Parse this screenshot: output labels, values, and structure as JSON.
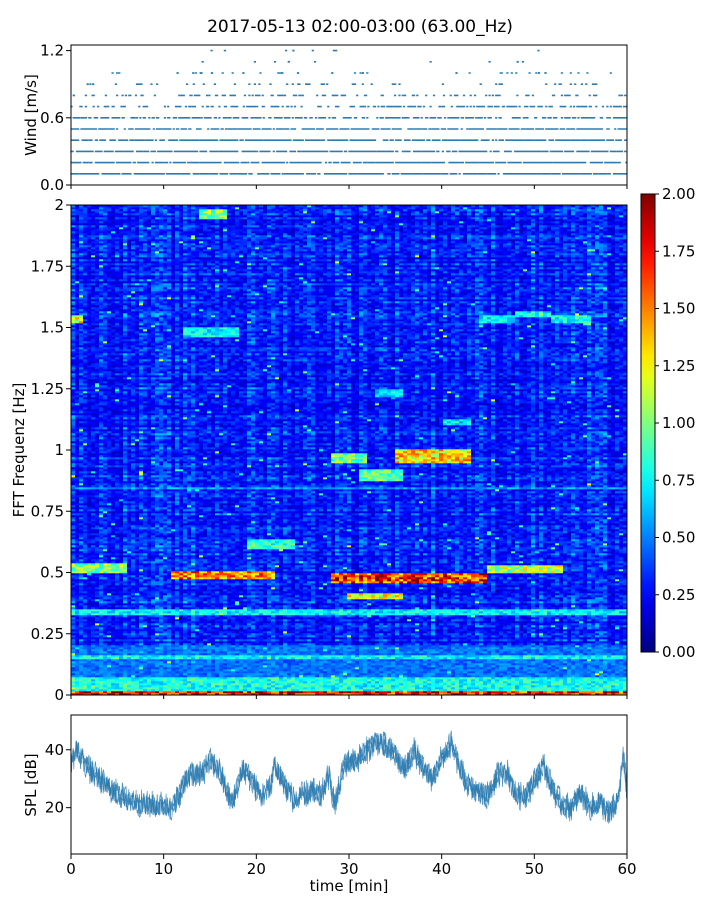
{
  "title": "2017-05-13 02:00-03:00 (63.00_Hz)",
  "colors": {
    "series": "#2b7bb0",
    "axis": "#000000"
  },
  "chart_data": [
    {
      "type": "scatter",
      "name": "wind",
      "ylabel": "Wind [m/s]",
      "xlim": [
        0,
        60
      ],
      "ylim": [
        0,
        1.25
      ],
      "yticks": [
        {
          "v": 0,
          "label": "0.0"
        },
        {
          "v": 0.6,
          "label": "0.6"
        },
        {
          "v": 1.2,
          "label": "1.2"
        }
      ],
      "levels": [
        0.1,
        0.2,
        0.3,
        0.4,
        0.5,
        0.6,
        0.7,
        0.8,
        0.9,
        1.0,
        1.1,
        1.2
      ],
      "level_profile": [
        {
          "t": 0,
          "p": [
            0.9,
            0.8,
            0.75,
            0.7,
            0.6,
            0.5,
            0.3,
            0.15,
            0.05,
            0.02,
            0,
            0
          ]
        },
        {
          "t": 10,
          "p": [
            0.8,
            0.8,
            0.75,
            0.7,
            0.6,
            0.5,
            0.35,
            0.2,
            0.08,
            0.05,
            0,
            0
          ]
        },
        {
          "t": 17,
          "p": [
            0.8,
            0.8,
            0.8,
            0.75,
            0.7,
            0.6,
            0.45,
            0.3,
            0.15,
            0.1,
            0.04,
            0.02
          ]
        },
        {
          "t": 24,
          "p": [
            0.8,
            0.8,
            0.8,
            0.8,
            0.7,
            0.6,
            0.5,
            0.3,
            0.15,
            0.1,
            0.05,
            0.03
          ]
        },
        {
          "t": 30,
          "p": [
            0.8,
            0.8,
            0.8,
            0.75,
            0.7,
            0.5,
            0.35,
            0.2,
            0.08,
            0.04,
            0,
            0
          ]
        },
        {
          "t": 40,
          "p": [
            0.8,
            0.8,
            0.8,
            0.75,
            0.7,
            0.55,
            0.4,
            0.25,
            0.1,
            0.05,
            0.02,
            0
          ]
        },
        {
          "t": 50,
          "p": [
            0.8,
            0.8,
            0.8,
            0.8,
            0.7,
            0.6,
            0.45,
            0.25,
            0.12,
            0.06,
            0.02,
            0.01
          ]
        },
        {
          "t": 60,
          "p": [
            0.8,
            0.8,
            0.8,
            0.75,
            0.7,
            0.6,
            0.4,
            0.2,
            0.08,
            0.04,
            0,
            0
          ]
        }
      ],
      "peaks": [
        {
          "x": 24.0,
          "y": 1.2
        },
        {
          "x": 23.5,
          "y": 1.1
        },
        {
          "x": 22.8,
          "y": 1.0
        },
        {
          "x": 24.5,
          "y": 1.0
        },
        {
          "x": 48.2,
          "y": 1.1
        },
        {
          "x": 41.6,
          "y": 1.0
        },
        {
          "x": 50.5,
          "y": 1.0
        },
        {
          "x": 51.2,
          "y": 1.0
        },
        {
          "x": 11.5,
          "y": 1.0
        },
        {
          "x": 13.2,
          "y": 1.0
        },
        {
          "x": 14.0,
          "y": 1.0
        },
        {
          "x": 18.6,
          "y": 1.0
        },
        {
          "x": 28.2,
          "y": 1.0
        },
        {
          "x": 31.5,
          "y": 1.0
        },
        {
          "x": 15.2,
          "y": 1.0
        },
        {
          "x": 0.3,
          "y": 0.8
        },
        {
          "x": 1.8,
          "y": 0.9
        },
        {
          "x": 2.4,
          "y": 0.9
        },
        {
          "x": 59.2,
          "y": 0.8
        }
      ]
    },
    {
      "type": "heatmap",
      "name": "spectrogram",
      "ylabel": "FFT Frequenz [Hz]",
      "xlim": [
        0,
        60
      ],
      "ylim": [
        0,
        2
      ],
      "yticks": [
        {
          "v": 0,
          "label": "0"
        },
        {
          "v": 0.25,
          "label": "0.25"
        },
        {
          "v": 0.5,
          "label": "0.5"
        },
        {
          "v": 0.75,
          "label": "0.75"
        },
        {
          "v": 1,
          "label": "1"
        },
        {
          "v": 1.25,
          "label": "1.25"
        },
        {
          "v": 1.5,
          "label": "1.5"
        },
        {
          "v": 1.75,
          "label": "1.75"
        },
        {
          "v": 2,
          "label": "2"
        }
      ],
      "colormap": "jet",
      "clim": [
        0,
        2
      ],
      "colorbar_ticks": [
        "0.00",
        "0.25",
        "0.50",
        "0.75",
        "1.00",
        "1.25",
        "1.50",
        "1.75",
        "2.00"
      ],
      "background_level": 0.3,
      "hotspots": [
        {
          "t0": 0,
          "t1": 60,
          "f0": 0.0,
          "f1": 0.02,
          "v": 1.9
        },
        {
          "t0": 0,
          "t1": 60,
          "f0": 0.02,
          "f1": 0.07,
          "v": 0.85
        },
        {
          "t0": 0,
          "t1": 60,
          "f0": 0.07,
          "f1": 0.2,
          "v": 0.5
        },
        {
          "t0": 11,
          "t1": 22,
          "f0": 0.47,
          "f1": 0.51,
          "v": 1.6
        },
        {
          "t0": 28,
          "t1": 45,
          "f0": 0.46,
          "f1": 0.5,
          "v": 1.8
        },
        {
          "t0": 30,
          "t1": 36,
          "f0": 0.39,
          "f1": 0.42,
          "v": 1.3
        },
        {
          "t0": 45,
          "t1": 53,
          "f0": 0.5,
          "f1": 0.53,
          "v": 1.2
        },
        {
          "t0": 0,
          "t1": 6,
          "f0": 0.5,
          "f1": 0.54,
          "v": 1.1
        },
        {
          "t0": 0,
          "t1": 60,
          "f0": 0.33,
          "f1": 0.35,
          "v": 0.8
        },
        {
          "t0": 35,
          "t1": 43,
          "f0": 0.95,
          "f1": 1.0,
          "v": 1.4
        },
        {
          "t0": 28,
          "t1": 32,
          "f0": 0.95,
          "f1": 0.99,
          "v": 1.05
        },
        {
          "t0": 31,
          "t1": 36,
          "f0": 0.87,
          "f1": 0.92,
          "v": 1.0
        },
        {
          "t0": 0,
          "t1": 1.5,
          "f0": 1.52,
          "f1": 1.55,
          "v": 1.3
        },
        {
          "t0": 14,
          "t1": 17,
          "f0": 1.94,
          "f1": 1.98,
          "v": 1.1
        },
        {
          "t0": 19,
          "t1": 24,
          "f0": 0.6,
          "f1": 0.64,
          "v": 0.9
        },
        {
          "t0": 12,
          "t1": 18,
          "f0": 1.46,
          "f1": 1.5,
          "v": 0.8
        },
        {
          "t0": 48,
          "t1": 52,
          "f0": 1.54,
          "f1": 1.57,
          "v": 0.85
        },
        {
          "t0": 33,
          "t1": 36,
          "f0": 1.22,
          "f1": 1.25,
          "v": 0.75
        },
        {
          "t0": 40,
          "t1": 43,
          "f0": 1.1,
          "f1": 1.13,
          "v": 0.75
        },
        {
          "t0": 0,
          "t1": 60,
          "f0": 0.84,
          "f1": 0.85,
          "v": 0.6
        },
        {
          "t0": 0,
          "t1": 60,
          "f0": 0.15,
          "f1": 0.16,
          "v": 0.8
        },
        {
          "t0": 44,
          "t1": 48,
          "f0": 1.52,
          "f1": 1.55,
          "v": 0.8
        },
        {
          "t0": 52,
          "t1": 56,
          "f0": 1.52,
          "f1": 1.55,
          "v": 0.85
        }
      ]
    },
    {
      "type": "line",
      "name": "spl",
      "xlabel": "time [min]",
      "ylabel": "SPL [dB]",
      "xlim": [
        0,
        60
      ],
      "ylim": [
        4,
        52
      ],
      "xticks": [
        {
          "v": 0,
          "label": "0"
        },
        {
          "v": 10,
          "label": "10"
        },
        {
          "v": 20,
          "label": "20"
        },
        {
          "v": 30,
          "label": "30"
        },
        {
          "v": 40,
          "label": "40"
        },
        {
          "v": 50,
          "label": "50"
        },
        {
          "v": 60,
          "label": "60"
        }
      ],
      "yticks": [
        {
          "v": 20,
          "label": "20"
        },
        {
          "v": 40,
          "label": "40"
        }
      ],
      "envelope": [
        {
          "t": 0,
          "v": 35
        },
        {
          "t": 0.5,
          "v": 40
        },
        {
          "t": 2,
          "v": 33
        },
        {
          "t": 4,
          "v": 27
        },
        {
          "t": 6,
          "v": 23
        },
        {
          "t": 8,
          "v": 21
        },
        {
          "t": 10,
          "v": 21
        },
        {
          "t": 11,
          "v": 20
        },
        {
          "t": 12,
          "v": 27
        },
        {
          "t": 13,
          "v": 32
        },
        {
          "t": 14,
          "v": 31
        },
        {
          "t": 15,
          "v": 36
        },
        {
          "t": 16,
          "v": 33
        },
        {
          "t": 17,
          "v": 24
        },
        {
          "t": 17.5,
          "v": 22
        },
        {
          "t": 18.5,
          "v": 34
        },
        {
          "t": 19.5,
          "v": 29
        },
        {
          "t": 20.5,
          "v": 24
        },
        {
          "t": 21.5,
          "v": 27
        },
        {
          "t": 22,
          "v": 35
        },
        {
          "t": 23,
          "v": 28
        },
        {
          "t": 24,
          "v": 23
        },
        {
          "t": 25,
          "v": 24
        },
        {
          "t": 26,
          "v": 26
        },
        {
          "t": 27,
          "v": 24
        },
        {
          "t": 27.8,
          "v": 31
        },
        {
          "t": 28.5,
          "v": 21
        },
        {
          "t": 29.5,
          "v": 35
        },
        {
          "t": 31,
          "v": 37
        },
        {
          "t": 32,
          "v": 40
        },
        {
          "t": 33,
          "v": 43
        },
        {
          "t": 34,
          "v": 41
        },
        {
          "t": 35,
          "v": 38
        },
        {
          "t": 36,
          "v": 33
        },
        {
          "t": 37,
          "v": 40
        },
        {
          "t": 38,
          "v": 33
        },
        {
          "t": 39,
          "v": 30
        },
        {
          "t": 40,
          "v": 37
        },
        {
          "t": 41,
          "v": 42
        },
        {
          "t": 42,
          "v": 33
        },
        {
          "t": 43,
          "v": 27
        },
        {
          "t": 44,
          "v": 25
        },
        {
          "t": 45,
          "v": 24
        },
        {
          "t": 46,
          "v": 31
        },
        {
          "t": 47,
          "v": 33
        },
        {
          "t": 48,
          "v": 24
        },
        {
          "t": 49,
          "v": 24
        },
        {
          "t": 50,
          "v": 29
        },
        {
          "t": 51,
          "v": 35
        },
        {
          "t": 52,
          "v": 26
        },
        {
          "t": 53,
          "v": 21
        },
        {
          "t": 54,
          "v": 20
        },
        {
          "t": 55,
          "v": 25
        },
        {
          "t": 56,
          "v": 20
        },
        {
          "t": 57,
          "v": 22
        },
        {
          "t": 58,
          "v": 18
        },
        {
          "t": 59,
          "v": 22
        },
        {
          "t": 59.6,
          "v": 38
        },
        {
          "t": 60,
          "v": 25
        }
      ],
      "spread": 5
    }
  ]
}
